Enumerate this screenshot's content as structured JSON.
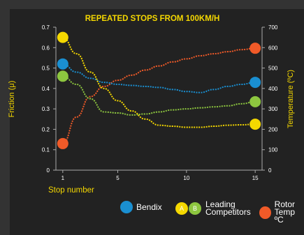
{
  "chart_data": {
    "type": "line",
    "title": "REPEATED STOPS FROM 100KM/H",
    "xlabel": "Stop number",
    "ylabel_left": "Friction (μ)",
    "ylabel_right": "Temperature (ºC)",
    "x_ticks": [
      "1",
      "5",
      "10",
      "15"
    ],
    "y_left_ticks": [
      "0",
      "0.1",
      "0.2",
      "0.3",
      "0.4",
      "0.5",
      "0.6",
      "0.7"
    ],
    "y_right_ticks": [
      "0",
      "100",
      "200",
      "300",
      "400",
      "500",
      "600",
      "700"
    ],
    "xlim": [
      0.5,
      15.5
    ],
    "ylim_left": [
      0,
      0.7
    ],
    "ylim_right": [
      0,
      700
    ],
    "series": [
      {
        "name": "Bendix",
        "axis": "left",
        "color": "#1a8fd1",
        "style": "dotted",
        "x": [
          1,
          2,
          3,
          4,
          5,
          6,
          7,
          8,
          9,
          10,
          11,
          12,
          13,
          14,
          15
        ],
        "y": [
          0.52,
          0.48,
          0.45,
          0.43,
          0.42,
          0.415,
          0.41,
          0.405,
          0.395,
          0.385,
          0.38,
          0.395,
          0.41,
          0.42,
          0.43
        ]
      },
      {
        "key": "A",
        "axis": "left",
        "color": "#f5d800",
        "style": "dotted",
        "x": [
          1,
          2,
          3,
          4,
          5,
          6,
          7,
          8,
          9,
          10,
          11,
          12,
          13,
          14,
          15
        ],
        "y": [
          0.65,
          0.57,
          0.48,
          0.4,
          0.34,
          0.29,
          0.25,
          0.22,
          0.215,
          0.21,
          0.21,
          0.215,
          0.22,
          0.222,
          0.225
        ]
      },
      {
        "key": "B",
        "axis": "left",
        "color": "#8dc63f",
        "style": "dotted",
        "x": [
          1,
          2,
          3,
          4,
          5,
          6,
          7,
          8,
          9,
          10,
          11,
          12,
          13,
          14,
          15
        ],
        "y": [
          0.46,
          0.42,
          0.35,
          0.285,
          0.28,
          0.27,
          0.275,
          0.285,
          0.295,
          0.3,
          0.305,
          0.31,
          0.315,
          0.325,
          0.335
        ]
      },
      {
        "name": "Rotor Temp ºC",
        "axis": "right",
        "color": "#f05a28",
        "style": "dotted",
        "x": [
          1,
          2,
          3,
          4,
          5,
          6,
          7,
          8,
          9,
          10,
          11,
          12,
          13,
          14,
          15
        ],
        "y": [
          130,
          260,
          360,
          410,
          440,
          465,
          490,
          510,
          530,
          545,
          560,
          570,
          580,
          590,
          597
        ]
      }
    ],
    "grid": false,
    "legend": "bottom"
  },
  "legend": {
    "bendix": "Bendix",
    "a_marker": "A",
    "b_marker": "B",
    "leading_line1": "Leading",
    "leading_line2": "Competitors",
    "rotor_line1": "Rotor",
    "rotor_line2": "Temp ºC"
  },
  "colors": {
    "background": "#333333",
    "panel": "#222222",
    "title": "#f5d800",
    "axis_label": "#f5d800",
    "text": "#ffffff"
  }
}
